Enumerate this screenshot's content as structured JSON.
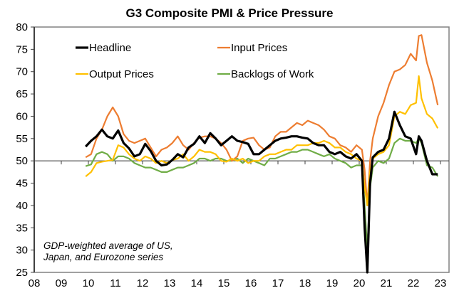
{
  "chart_data": {
    "type": "line",
    "title": "G3 Composite PMI & Price Pressure",
    "xlabel": "",
    "ylabel": "",
    "ylim": [
      25,
      80
    ],
    "xlim": [
      2008,
      2023
    ],
    "yticks": [
      25,
      30,
      35,
      40,
      45,
      50,
      55,
      60,
      65,
      70,
      75,
      80
    ],
    "xtick_labels": [
      "08",
      "09",
      "10",
      "11",
      "12",
      "13",
      "14",
      "15",
      "16",
      "17",
      "18",
      "19",
      "20",
      "21",
      "22",
      "23"
    ],
    "reference_line": 50,
    "grid": false,
    "legend_position": "top-left",
    "annotation": [
      "GDP-weighted average of US,",
      "Japan, and Eurozone series"
    ],
    "x": [
      2009.9,
      2010.1,
      2010.3,
      2010.5,
      2010.7,
      2010.9,
      2011.1,
      2011.3,
      2011.5,
      2011.7,
      2011.9,
      2012.1,
      2012.3,
      2012.5,
      2012.7,
      2012.9,
      2013.1,
      2013.3,
      2013.5,
      2013.7,
      2013.9,
      2014.1,
      2014.3,
      2014.5,
      2014.7,
      2014.9,
      2015.1,
      2015.3,
      2015.5,
      2015.7,
      2015.9,
      2016.1,
      2016.3,
      2016.5,
      2016.7,
      2016.9,
      2017.1,
      2017.3,
      2017.5,
      2017.7,
      2017.9,
      2018.1,
      2018.3,
      2018.5,
      2018.7,
      2018.9,
      2019.1,
      2019.3,
      2019.5,
      2019.7,
      2019.9,
      2020.1,
      2020.2,
      2020.3,
      2020.4,
      2020.5,
      2020.7,
      2020.9,
      2021.1,
      2021.3,
      2021.5,
      2021.7,
      2021.9,
      2022.1,
      2022.2,
      2022.3,
      2022.5,
      2022.7,
      2022.9
    ],
    "series": [
      {
        "name": "Headline",
        "color": "#000000",
        "values": [
          53.2,
          54.5,
          55.5,
          57.0,
          55.5,
          55.0,
          56.8,
          54.0,
          52.8,
          51.0,
          51.5,
          53.8,
          52.2,
          50.0,
          49.0,
          49.2,
          50.2,
          51.5,
          50.8,
          53.0,
          53.8,
          55.5,
          54.0,
          56.2,
          55.0,
          53.5,
          54.5,
          55.5,
          54.5,
          54.2,
          53.8,
          51.5,
          51.5,
          52.5,
          53.5,
          54.5,
          55.0,
          55.2,
          55.5,
          55.5,
          55.2,
          55.0,
          54.0,
          53.5,
          53.5,
          52.0,
          51.5,
          52.0,
          51.0,
          50.5,
          51.5,
          50.0,
          35.0,
          25.0,
          45.0,
          50.8,
          52.0,
          52.5,
          55.0,
          61.0,
          58.0,
          55.5,
          55.0,
          51.5,
          55.5,
          54.5,
          50.0,
          47.0,
          47.0
        ]
      },
      {
        "name": "Input Prices",
        "color": "#ED7D31",
        "values": [
          50.8,
          51.5,
          55.0,
          57.0,
          60.0,
          62.0,
          60.0,
          56.0,
          54.5,
          54.0,
          54.5,
          55.0,
          53.0,
          51.0,
          52.5,
          53.0,
          54.0,
          55.5,
          53.5,
          52.5,
          54.0,
          55.2,
          55.5,
          55.5,
          55.0,
          54.0,
          52.5,
          50.0,
          51.0,
          54.5,
          55.0,
          55.2,
          53.5,
          52.5,
          53.0,
          55.5,
          56.5,
          56.5,
          57.5,
          58.5,
          58.0,
          59.0,
          58.5,
          58.0,
          57.0,
          55.5,
          55.0,
          53.5,
          53.0,
          52.0,
          53.5,
          52.5,
          48.0,
          40.0,
          50.0,
          55.0,
          60.0,
          63.0,
          67.0,
          70.0,
          70.5,
          71.5,
          74.0,
          72.5,
          78.0,
          78.2,
          72.0,
          68.0,
          62.5
        ]
      },
      {
        "name": "Output Prices",
        "color": "#FFC000",
        "values": [
          46.5,
          47.5,
          49.5,
          49.8,
          50.0,
          50.2,
          53.5,
          53.0,
          51.5,
          50.5,
          50.0,
          51.0,
          50.5,
          49.5,
          50.0,
          49.5,
          50.2,
          50.5,
          51.5,
          50.0,
          51.0,
          52.5,
          52.0,
          52.0,
          51.5,
          50.0,
          49.8,
          50.5,
          50.0,
          50.5,
          49.5,
          50.0,
          50.0,
          51.0,
          51.5,
          51.5,
          52.0,
          52.5,
          52.5,
          53.5,
          53.5,
          53.5,
          54.0,
          54.0,
          54.5,
          54.0,
          53.0,
          53.0,
          52.0,
          51.5,
          50.5,
          50.0,
          44.0,
          40.0,
          47.5,
          50.5,
          51.5,
          52.0,
          53.5,
          60.0,
          61.0,
          60.5,
          62.5,
          63.0,
          69.0,
          64.0,
          60.5,
          59.5,
          57.3
        ]
      },
      {
        "name": "Backlogs of Work",
        "color": "#70AD47",
        "values": [
          48.8,
          49.2,
          51.5,
          52.0,
          51.5,
          50.0,
          51.0,
          51.0,
          50.5,
          49.5,
          49.0,
          48.5,
          48.5,
          48.0,
          47.5,
          47.5,
          48.0,
          48.5,
          48.5,
          49.0,
          49.5,
          50.5,
          50.5,
          50.0,
          50.5,
          50.5,
          50.0,
          50.0,
          50.5,
          49.5,
          50.5,
          50.0,
          49.5,
          49.0,
          50.5,
          50.5,
          51.0,
          51.5,
          52.0,
          52.0,
          52.5,
          52.5,
          52.0,
          51.5,
          51.0,
          51.5,
          50.5,
          50.0,
          49.5,
          48.5,
          49.0,
          49.0,
          40.0,
          30.0,
          44.0,
          48.5,
          50.0,
          49.5,
          50.5,
          54.0,
          55.0,
          54.5,
          54.5,
          54.0,
          55.0,
          54.0,
          49.0,
          48.5,
          46.5
        ]
      }
    ]
  }
}
